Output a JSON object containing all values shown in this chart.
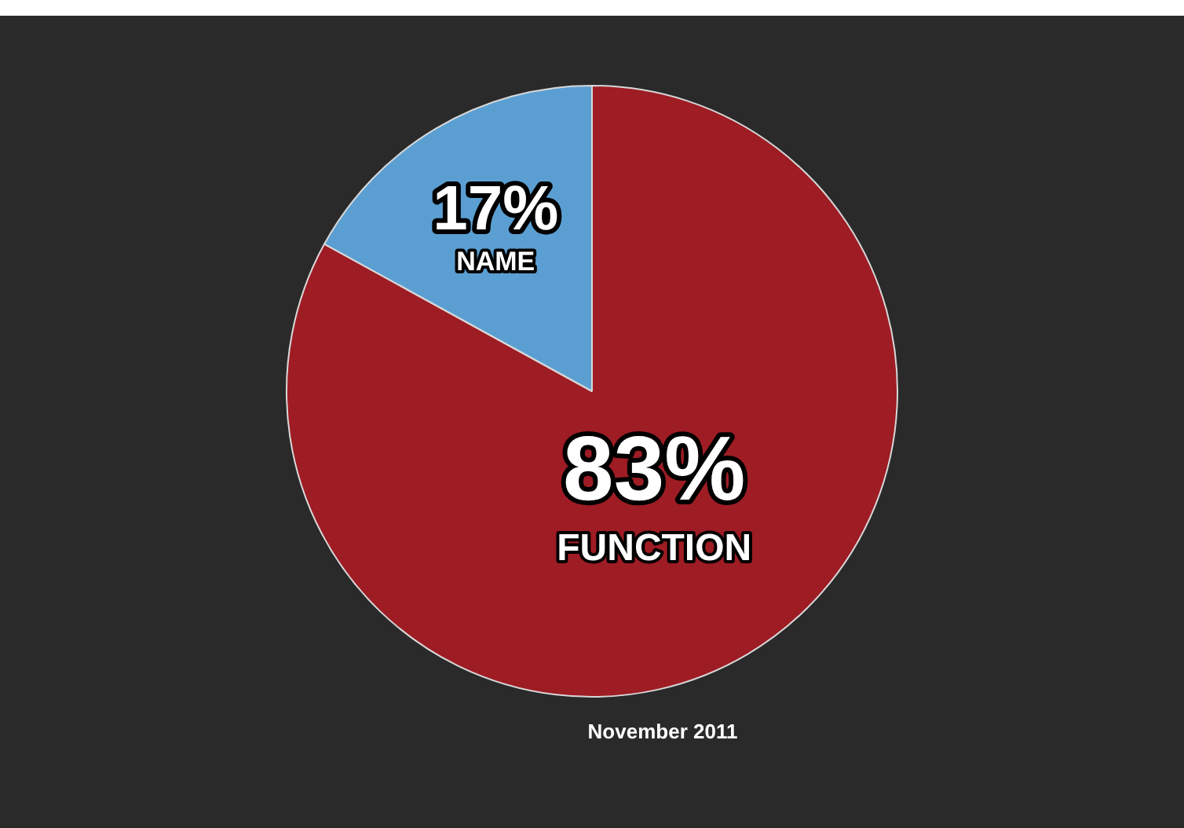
{
  "chart_data": {
    "type": "pie",
    "categories": [
      "FUNCTION",
      "NAME"
    ],
    "values": [
      83,
      17
    ],
    "colors": [
      "#9e1c24",
      "#5b9fd2"
    ],
    "value_labels": [
      "83%",
      "17%"
    ],
    "annotations": [
      "November 2011"
    ],
    "legend": false
  }
}
